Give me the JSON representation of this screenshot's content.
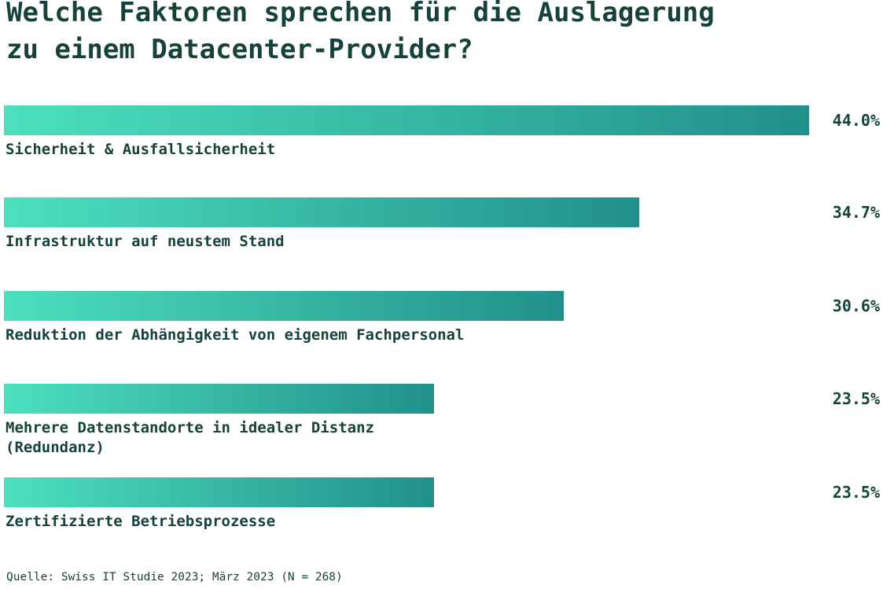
{
  "header": {
    "title_lines": [
      "Welche Faktoren sprechen für die Auslagerung",
      "zu einem Datacenter-Provider?"
    ]
  },
  "footer": {
    "source": "Quelle: Swiss IT Studie 2023; März 2023 (N = 268)"
  },
  "colors": {
    "background": "#ffffff",
    "text": "#17423c",
    "bar_gradient_start": "#4ce0bd",
    "bar_gradient_end": "#21908b"
  },
  "chart_data": {
    "type": "bar",
    "orientation": "horizontal",
    "title": "Welche Faktoren sprechen für die Auslagerung zu einem Datacenter-Provider?",
    "categories": [
      "Sicherheit & Ausfallsicherheit",
      "Infrastruktur auf neustem Stand",
      "Reduktion der Abhängigkeit von eigenem Fachpersonal",
      "Mehrere Datenstandorte in idealer Distanz\n(Redundanz)",
      "Zertifizierte Betriebsprozesse"
    ],
    "values": [
      44.0,
      34.7,
      30.6,
      23.5,
      23.5
    ],
    "value_labels": [
      "44.0%",
      "34.7%",
      "30.6%",
      "23.5%",
      "23.5%"
    ],
    "xlim": [
      0,
      44.0
    ],
    "grid": false,
    "legend": false,
    "value_label_position": "right-edge",
    "category_label_position": "below-bar",
    "source": "Quelle: Swiss IT Studie 2023; März 2023 (N = 268)"
  }
}
